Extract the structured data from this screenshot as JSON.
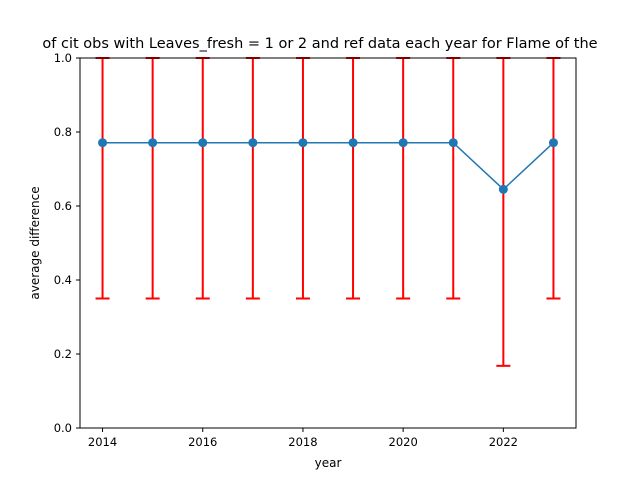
{
  "chart_data": {
    "type": "line",
    "title": "of cit obs with Leaves_fresh = 1 or 2 and ref data each year for Flame of the",
    "xlabel": "year",
    "ylabel": "average difference",
    "x": [
      2014,
      2015,
      2016,
      2017,
      2018,
      2019,
      2020,
      2021,
      2022,
      2023
    ],
    "series": [
      {
        "values": [
          0.771,
          0.771,
          0.771,
          0.771,
          0.771,
          0.771,
          0.771,
          0.771,
          0.645,
          0.771
        ],
        "error_lower": [
          0.35,
          0.35,
          0.35,
          0.35,
          0.35,
          0.35,
          0.35,
          0.35,
          0.168,
          0.35
        ],
        "error_upper": [
          1.0,
          1.0,
          1.0,
          1.0,
          1.0,
          1.0,
          1.0,
          1.0,
          1.0,
          1.0
        ],
        "color": "#1f77b4",
        "error_color": "#ff0000"
      }
    ],
    "xlim": [
      2013.55,
      2023.45
    ],
    "ylim": [
      0.0,
      1.0
    ],
    "xticks": [
      "2014",
      "2016",
      "2018",
      "2020",
      "2022"
    ],
    "yticks": [
      "0.0",
      "0.2",
      "0.4",
      "0.6",
      "0.8",
      "1.0"
    ],
    "grid": false,
    "legend": "none"
  }
}
